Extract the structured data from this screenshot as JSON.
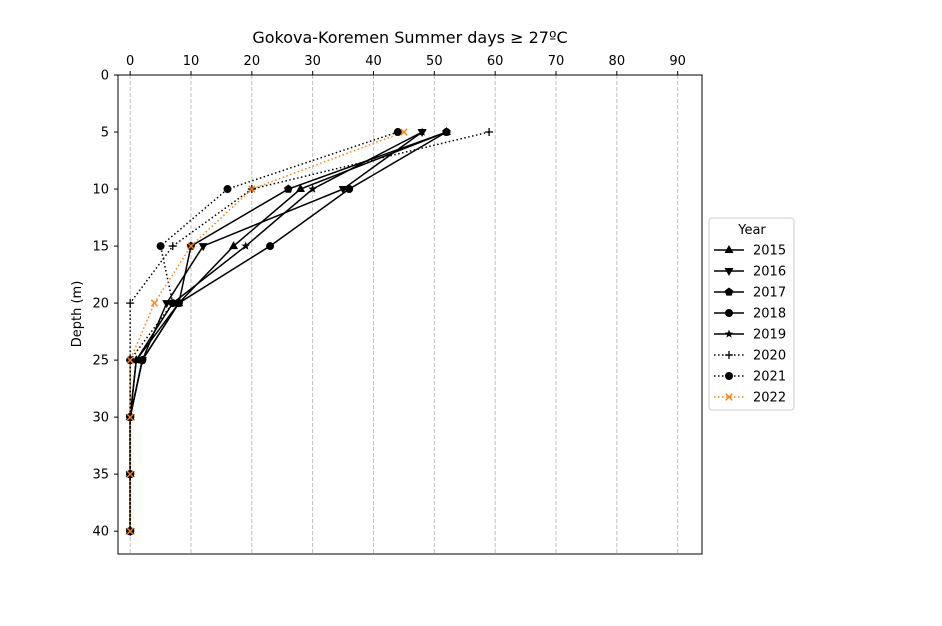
{
  "chart_data": {
    "type": "line",
    "title": "Gokova-Koremen Summer days ≥ 27ºC",
    "xlabel": "",
    "ylabel": "Depth (m)",
    "xlim": [
      -2,
      94
    ],
    "ylim": [
      42,
      0
    ],
    "x_ticks": [
      0,
      10,
      20,
      30,
      40,
      50,
      60,
      70,
      80,
      90
    ],
    "y_ticks": [
      0,
      5,
      10,
      15,
      20,
      25,
      30,
      35,
      40
    ],
    "x_axis_position": "top",
    "y_inverted": true,
    "grid": "vertical dashed",
    "legend": {
      "title": "Year",
      "placement": "right"
    },
    "depths": [
      5,
      10,
      15,
      20,
      25,
      30,
      35,
      40
    ],
    "series": [
      {
        "name": "2015",
        "marker": "triangle-up",
        "linestyle": "solid",
        "color": "#000000",
        "x": [
          52,
          28,
          17,
          8,
          1,
          0,
          0,
          0
        ]
      },
      {
        "name": "2016",
        "marker": "triangle-down",
        "linestyle": "solid",
        "color": "#000000",
        "x": [
          48,
          35,
          12,
          6,
          2,
          0,
          0,
          0
        ]
      },
      {
        "name": "2017",
        "marker": "pentagon",
        "linestyle": "solid",
        "color": "#000000",
        "x": [
          52,
          26,
          10,
          8,
          2,
          0,
          0,
          0
        ]
      },
      {
        "name": "2018",
        "marker": "circle",
        "linestyle": "solid",
        "color": "#000000",
        "x": [
          52,
          36,
          23,
          8,
          2,
          0,
          0,
          0
        ]
      },
      {
        "name": "2019",
        "marker": "star",
        "linestyle": "solid",
        "color": "#000000",
        "x": [
          48,
          30,
          19,
          7,
          1,
          0,
          0,
          0
        ]
      },
      {
        "name": "2020",
        "marker": "plus",
        "linestyle": "dotted",
        "color": "#000000",
        "x": [
          59,
          20,
          7,
          0,
          0,
          0,
          0,
          0
        ]
      },
      {
        "name": "2021",
        "marker": "circle",
        "linestyle": "dotted",
        "color": "#000000",
        "x": [
          44,
          16,
          5,
          7,
          0,
          0,
          0,
          0
        ]
      },
      {
        "name": "2022",
        "marker": "x",
        "linestyle": "dotted",
        "color": "#ff7f0e",
        "x": [
          45,
          20,
          10,
          4,
          0,
          0,
          0,
          0
        ]
      }
    ]
  }
}
